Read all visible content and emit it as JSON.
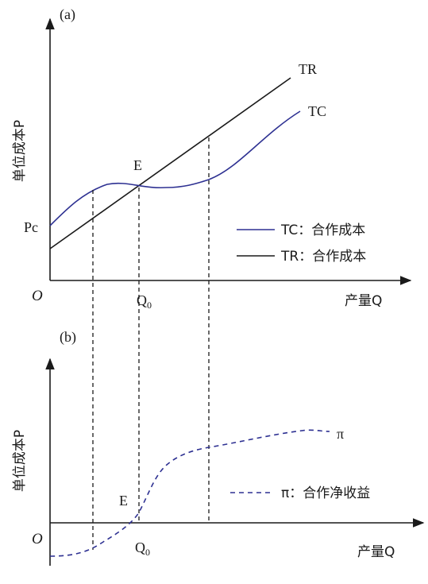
{
  "panel_a": {
    "label": "(a)",
    "y_axis_label": "单位成本P",
    "x_axis_label": "产量Q",
    "origin_label": "O",
    "tr_label": "TR",
    "tc_label": "TC",
    "e_label": "E",
    "pc_label": "Pc",
    "q0_label": "Q",
    "q0_sub": "0",
    "legend": [
      {
        "text": "TC：合作成本",
        "color": "#2e3192"
      },
      {
        "text": "TR：合作成本",
        "color": "#1a1a1a"
      }
    ]
  },
  "panel_b": {
    "label": "(b)",
    "y_axis_label": "单位成本P",
    "x_axis_label": "产量Q",
    "origin_label": "O",
    "pi_label": "π",
    "e_label": "E",
    "q0_label": "Q",
    "q0_sub": "0",
    "legend": [
      {
        "text": "π：合作净收益",
        "color": "#2e3192"
      }
    ]
  },
  "colors": {
    "tc": "#2e3192",
    "tr": "#1a1a1a",
    "pi": "#2e3192"
  }
}
